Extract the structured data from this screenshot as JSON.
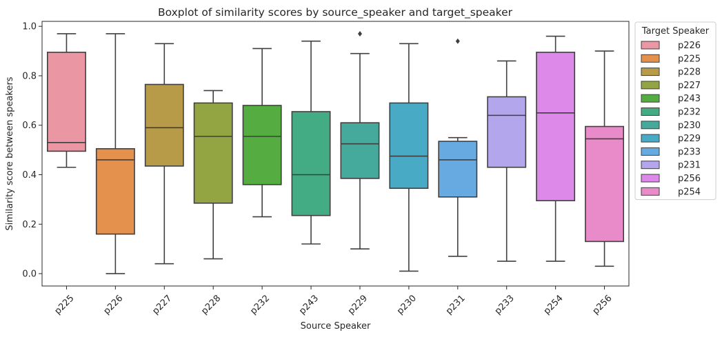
{
  "chart_data": {
    "type": "box",
    "title": "Boxplot of similarity scores by source_speaker and target_speaker",
    "xlabel": "Source Speaker",
    "ylabel": "Similarity score between speakers",
    "ylim": [
      -0.05,
      1.02
    ],
    "yticks": [
      "0.0",
      "0.2",
      "0.4",
      "0.6",
      "0.8",
      "1.0"
    ],
    "categories": [
      "p225",
      "p226",
      "p227",
      "p228",
      "p232",
      "p243",
      "p229",
      "p230",
      "p231",
      "p233",
      "p254",
      "p256"
    ],
    "legend": {
      "title": "Target Speaker",
      "position": "outside-right",
      "entries": [
        "p226",
        "p225",
        "p228",
        "p227",
        "p243",
        "p232",
        "p230",
        "p229",
        "p233",
        "p231",
        "p256",
        "p254"
      ]
    },
    "series": [
      {
        "source": "p225",
        "target": "p226",
        "whisker_low": 0.43,
        "q1": 0.495,
        "median": 0.53,
        "q3": 0.895,
        "whisker_high": 0.97,
        "outliers": [],
        "color": "#ea96a3"
      },
      {
        "source": "p226",
        "target": "p225",
        "whisker_low": 0.0,
        "q1": 0.16,
        "median": 0.46,
        "q3": 0.505,
        "whisker_high": 0.97,
        "outliers": [],
        "color": "#e3914d"
      },
      {
        "source": "p227",
        "target": "p228",
        "whisker_low": 0.04,
        "q1": 0.435,
        "median": 0.59,
        "q3": 0.765,
        "whisker_high": 0.93,
        "outliers": [],
        "color": "#b89b48"
      },
      {
        "source": "p228",
        "target": "p227",
        "whisker_low": 0.06,
        "q1": 0.285,
        "median": 0.555,
        "q3": 0.69,
        "whisker_high": 0.74,
        "outliers": [],
        "color": "#93a443"
      },
      {
        "source": "p232",
        "target": "p243",
        "whisker_low": 0.23,
        "q1": 0.36,
        "median": 0.555,
        "q3": 0.68,
        "whisker_high": 0.91,
        "outliers": [],
        "color": "#55ac41"
      },
      {
        "source": "p243",
        "target": "p232",
        "whisker_low": 0.12,
        "q1": 0.235,
        "median": 0.4,
        "q3": 0.655,
        "whisker_high": 0.94,
        "outliers": [],
        "color": "#44ac84"
      },
      {
        "source": "p229",
        "target": "p230",
        "whisker_low": 0.1,
        "q1": 0.385,
        "median": 0.525,
        "q3": 0.61,
        "whisker_high": 0.89,
        "outliers": [
          0.97
        ],
        "color": "#45aa9c"
      },
      {
        "source": "p230",
        "target": "p229",
        "whisker_low": 0.01,
        "q1": 0.345,
        "median": 0.475,
        "q3": 0.69,
        "whisker_high": 0.93,
        "outliers": [],
        "color": "#48aac4"
      },
      {
        "source": "p231",
        "target": "p233",
        "whisker_low": 0.07,
        "q1": 0.31,
        "median": 0.46,
        "q3": 0.535,
        "whisker_high": 0.55,
        "outliers": [
          0.94
        ],
        "color": "#67aae2"
      },
      {
        "source": "p233",
        "target": "p231",
        "whisker_low": 0.05,
        "q1": 0.43,
        "median": 0.64,
        "q3": 0.715,
        "whisker_high": 0.86,
        "outliers": [],
        "color": "#b4a6ec"
      },
      {
        "source": "p254",
        "target": "p256",
        "whisker_low": 0.05,
        "q1": 0.295,
        "median": 0.65,
        "q3": 0.895,
        "whisker_high": 0.96,
        "outliers": [],
        "color": "#dc89e9"
      },
      {
        "source": "p256",
        "target": "p254",
        "whisker_low": 0.03,
        "q1": 0.13,
        "median": 0.545,
        "q3": 0.595,
        "whisker_high": 0.9,
        "outliers": [],
        "color": "#e88bc8"
      }
    ],
    "legend_colors": [
      "#ea96a3",
      "#e3914d",
      "#b89b48",
      "#93a443",
      "#55ac41",
      "#44ac84",
      "#45aa9c",
      "#48aac4",
      "#67aae2",
      "#b4a6ec",
      "#dc89e9",
      "#e88bc8"
    ],
    "grid": false
  }
}
